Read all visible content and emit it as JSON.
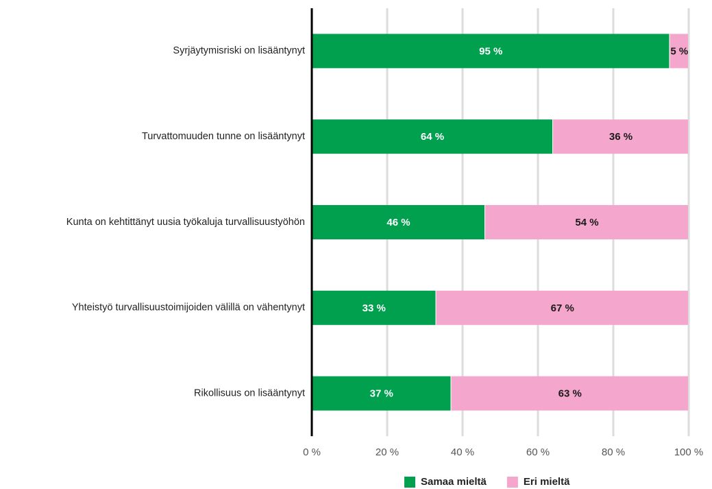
{
  "chart_data": {
    "type": "bar",
    "orientation": "horizontal",
    "stacked": true,
    "categories": [
      "Syrjäytymisriski on lisääntynyt",
      "Turvattomuuden tunne on lisääntynyt",
      "Kunta on kehtittänyt uusia työkaluja turvallisuustyöhön",
      "Yhteistyö turvallisuustoimijoiden välillä on vähentynyt",
      "Rikollisuus on lisääntynyt"
    ],
    "series": [
      {
        "name": "Samaa mieltä",
        "color": "#00a04e",
        "label_color": "#ffffff",
        "values": [
          95,
          64,
          46,
          33,
          37
        ],
        "value_labels": [
          "95 %",
          "64 %",
          "46 %",
          "33 %",
          "37 %"
        ]
      },
      {
        "name": "Eri mieltä",
        "color": "#f5a6cd",
        "label_color": "#1a1a1a",
        "values": [
          5,
          36,
          54,
          67,
          63
        ],
        "value_labels": [
          "5 %",
          "36 %",
          "54 %",
          "67 %",
          "63 %"
        ]
      }
    ],
    "xlim": [
      0,
      100
    ],
    "xticks": [
      {
        "value": 0,
        "label": "0 %"
      },
      {
        "value": 20,
        "label": "20 %"
      },
      {
        "value": 40,
        "label": "40 %"
      },
      {
        "value": 60,
        "label": "60 %"
      },
      {
        "value": 80,
        "label": "80 %"
      },
      {
        "value": 100,
        "label": "100 %"
      }
    ],
    "grid": true,
    "legend": "bottom"
  }
}
